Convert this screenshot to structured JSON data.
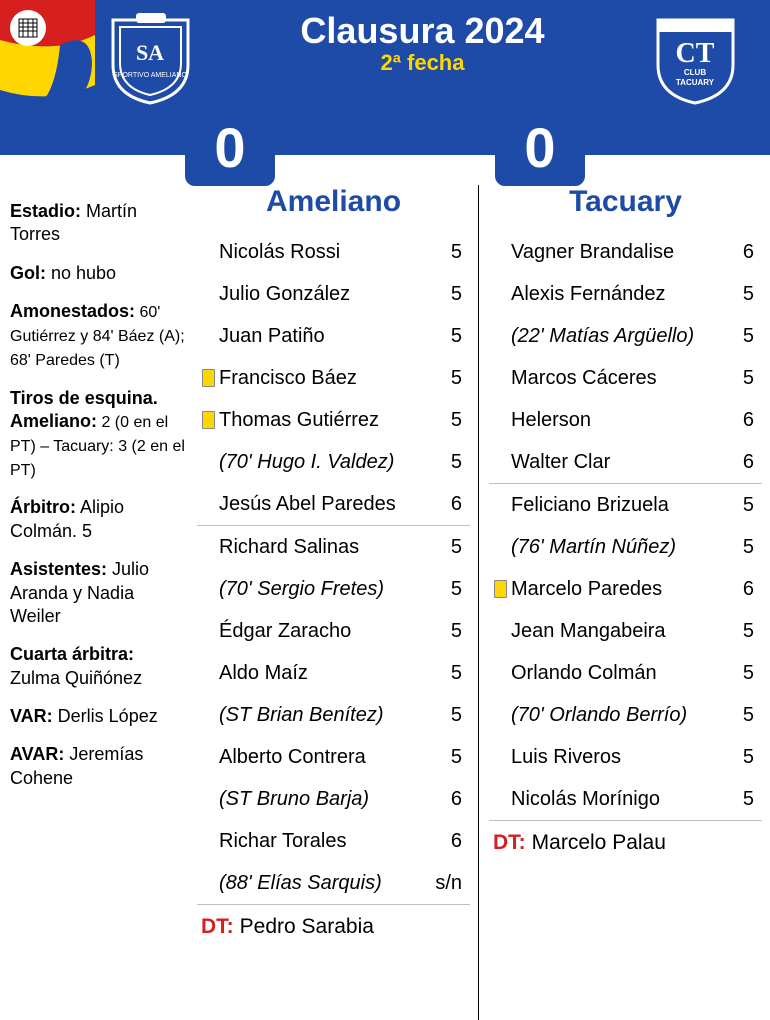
{
  "header": {
    "competition": "Clausura 2024",
    "round": "2ª fecha",
    "score_home": "0",
    "score_away": "0",
    "colors": {
      "background": "#1e4ba8",
      "text": "#ffffff",
      "accent": "#ffd700"
    }
  },
  "teams": {
    "home": {
      "name": "Ameliano"
    },
    "away": {
      "name": "Tacuary"
    }
  },
  "sidebar": {
    "stadium": {
      "label": "Estadio:",
      "value": " Martín Torres"
    },
    "goal": {
      "label": "Gol:",
      "value": " no hubo"
    },
    "booked": {
      "label": "Amonestados:",
      "value": " 60' Gutiérrez y 84' Báez (A); 68' Paredes (T)"
    },
    "corners": {
      "label": "Tiros de esquina.",
      "detail_label": "Ameliano:",
      "detail_value": " 2 (0 en el PT) – Tacuary: 3 (2 en el PT)"
    },
    "referee": {
      "label": "Árbitro:",
      "value": " Alipio Colmán. 5"
    },
    "assistants": {
      "label": "Asistentes:",
      "value": " Julio Aranda y Nadia Weiler"
    },
    "fourth": {
      "label": "Cuarta árbitra:",
      "value": " Zulma Quiñónez"
    },
    "var": {
      "label": "VAR:",
      "value": " Derlis López"
    },
    "avar": {
      "label": "AVAR:",
      "value": " Jeremías Cohene"
    }
  },
  "lineups": {
    "home": {
      "group1": [
        {
          "name": "Nicolás Rossi",
          "rating": "5",
          "card": false,
          "sub": false
        },
        {
          "name": "Julio González",
          "rating": "5",
          "card": false,
          "sub": false
        },
        {
          "name": "Juan Patiño",
          "rating": "5",
          "card": false,
          "sub": false
        },
        {
          "name": "Francisco Báez",
          "rating": "5",
          "card": true,
          "sub": false
        },
        {
          "name": "Thomas Gutiérrez",
          "rating": "5",
          "card": true,
          "sub": false
        },
        {
          "name": "(70' Hugo I. Valdez)",
          "rating": "5",
          "card": false,
          "sub": true
        },
        {
          "name": "Jesús Abel Paredes",
          "rating": "6",
          "card": false,
          "sub": false
        }
      ],
      "group2": [
        {
          "name": "Richard Salinas",
          "rating": "5",
          "card": false,
          "sub": false
        },
        {
          "name": "(70' Sergio Fretes)",
          "rating": "5",
          "card": false,
          "sub": true
        },
        {
          "name": "Édgar Zaracho",
          "rating": "5",
          "card": false,
          "sub": false
        },
        {
          "name": "Aldo Maíz",
          "rating": "5",
          "card": false,
          "sub": false
        },
        {
          "name": "(ST Brian Benítez)",
          "rating": "5",
          "card": false,
          "sub": true
        },
        {
          "name": "Alberto Contrera",
          "rating": "5",
          "card": false,
          "sub": false
        },
        {
          "name": "(ST Bruno Barja)",
          "rating": "6",
          "card": false,
          "sub": true
        },
        {
          "name": "Richar Torales",
          "rating": "6",
          "card": false,
          "sub": false
        },
        {
          "name": "(88' Elías Sarquis)",
          "rating": "s/n",
          "card": false,
          "sub": true
        }
      ],
      "coach_label": "DT:",
      "coach": "Pedro Sarabia"
    },
    "away": {
      "group1": [
        {
          "name": "Vagner Brandalise",
          "rating": "6",
          "card": false,
          "sub": false
        },
        {
          "name": "Alexis Fernández",
          "rating": "5",
          "card": false,
          "sub": false
        },
        {
          "name": "(22' Matías Argüello)",
          "rating": "5",
          "card": false,
          "sub": true
        },
        {
          "name": "Marcos Cáceres",
          "rating": "5",
          "card": false,
          "sub": false
        },
        {
          "name": "Helerson",
          "rating": "6",
          "card": false,
          "sub": false
        },
        {
          "name": "Walter Clar",
          "rating": "6",
          "card": false,
          "sub": false
        }
      ],
      "group2": [
        {
          "name": "Feliciano Brizuela",
          "rating": "5",
          "card": false,
          "sub": false
        },
        {
          "name": "(76' Martín Núñez)",
          "rating": "5",
          "card": false,
          "sub": true
        },
        {
          "name": "Marcelo Paredes",
          "rating": "6",
          "card": true,
          "sub": false
        },
        {
          "name": "Jean Mangabeira",
          "rating": "5",
          "card": false,
          "sub": false
        },
        {
          "name": "Orlando Colmán",
          "rating": "5",
          "card": false,
          "sub": false
        },
        {
          "name": "(70' Orlando Berrío)",
          "rating": "5",
          "card": false,
          "sub": true
        },
        {
          "name": "Luis Riveros",
          "rating": "5",
          "card": false,
          "sub": false
        },
        {
          "name": "Nicolás Morínigo",
          "rating": "5",
          "card": false,
          "sub": false
        }
      ],
      "coach_label": "DT:",
      "coach": "Marcelo Palau"
    }
  }
}
